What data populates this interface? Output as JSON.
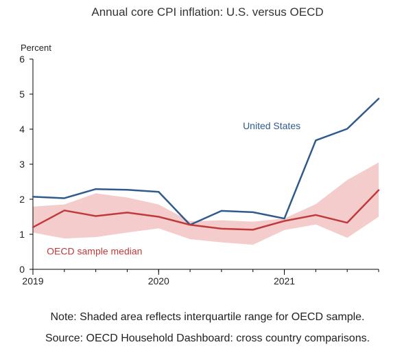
{
  "chart_data": {
    "type": "line",
    "title": "Annual core CPI inflation: U.S. versus OECD",
    "ylabel": "Percent",
    "xlabel": "",
    "ylim": [
      0,
      6
    ],
    "yticks": [
      0,
      1,
      2,
      3,
      4,
      5,
      6
    ],
    "xlim": [
      2019.0,
      2021.75
    ],
    "xticks": [
      {
        "x": 2019.0,
        "label": "2019"
      },
      {
        "x": 2020.0,
        "label": "2020"
      },
      {
        "x": 2021.0,
        "label": "2021"
      }
    ],
    "x": [
      2019.0,
      2019.25,
      2019.5,
      2019.75,
      2020.0,
      2020.25,
      2020.5,
      2020.75,
      2021.0,
      2021.25,
      2021.5,
      2021.75
    ],
    "series": [
      {
        "name": "United States",
        "color": "#2f5a8c",
        "values": [
          2.07,
          2.03,
          2.29,
          2.27,
          2.21,
          1.27,
          1.67,
          1.63,
          1.45,
          3.68,
          4.01,
          4.87
        ]
      },
      {
        "name": "OECD sample median",
        "color": "#c0393b",
        "values": [
          1.2,
          1.68,
          1.52,
          1.62,
          1.5,
          1.27,
          1.16,
          1.13,
          1.38,
          1.55,
          1.33,
          2.26
        ]
      }
    ],
    "band": {
      "color": "#f4cccc",
      "upper": [
        1.79,
        1.85,
        2.17,
        2.05,
        1.85,
        1.37,
        1.4,
        1.36,
        1.45,
        1.86,
        2.55,
        3.05
      ],
      "lower": [
        1.05,
        0.88,
        0.92,
        1.05,
        1.17,
        0.86,
        0.77,
        0.7,
        1.12,
        1.28,
        0.9,
        1.5
      ]
    }
  },
  "notes": {
    "line1": "Note: Shaded area reflects interquartile range for OECD sample.",
    "line2": "Source: OECD Household Dashboard: cross country comparisons."
  }
}
